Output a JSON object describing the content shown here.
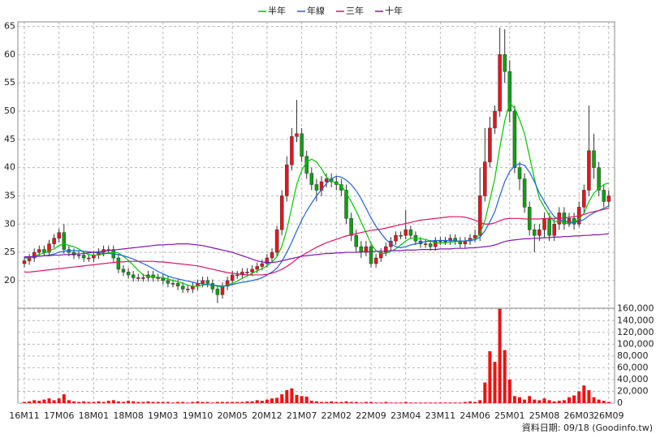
{
  "chart_data": [
    {
      "type": "candlestick",
      "categories": [
        "16M11",
        null,
        null,
        null,
        null,
        null,
        null,
        "17M06",
        null,
        null,
        null,
        null,
        null,
        null,
        "18M01",
        null,
        null,
        null,
        null,
        null,
        null,
        "18M08",
        null,
        null,
        null,
        null,
        null,
        null,
        "19M03",
        null,
        null,
        null,
        null,
        null,
        null,
        "19M10",
        null,
        null,
        null,
        null,
        null,
        null,
        "20M05",
        null,
        null,
        null,
        null,
        null,
        null,
        "20M12",
        null,
        null,
        null,
        null,
        null,
        null,
        "21M07",
        null,
        null,
        null,
        null,
        null,
        null,
        "22M02",
        null,
        null,
        null,
        null,
        null,
        null,
        "22M09",
        null,
        null,
        null,
        null,
        null,
        null,
        "23M04",
        null,
        null,
        null,
        null,
        null,
        null,
        "23M11",
        null,
        null,
        null,
        null,
        null,
        null,
        "24M06",
        null,
        null,
        null,
        null,
        null,
        null,
        "25M01",
        null,
        null,
        null,
        null,
        null,
        null,
        "25M08",
        null,
        null,
        null,
        null,
        null,
        null,
        "26M03",
        null,
        null,
        null,
        null,
        null,
        "26M09"
      ],
      "open": [
        23,
        23.5,
        24,
        25,
        25.5,
        25,
        26.5,
        27.5,
        28.5,
        25.5,
        25,
        24.5,
        24.5,
        24,
        24,
        24.5,
        25,
        25.5,
        25.5,
        24,
        22,
        21.5,
        21,
        20.5,
        20.5,
        20.5,
        21,
        20.5,
        20.5,
        20,
        19.5,
        19.5,
        19,
        18.5,
        18.5,
        19,
        19.5,
        20,
        19.5,
        18.5,
        17.5,
        19,
        20,
        21,
        21,
        21.5,
        21.5,
        22,
        22.5,
        23,
        24,
        25,
        29,
        35,
        40.5,
        45.5,
        46,
        42,
        39,
        37,
        36,
        37.5,
        38,
        37.5,
        37,
        36,
        31,
        28,
        26,
        25,
        26,
        23,
        24,
        25,
        26,
        27,
        28,
        28,
        29,
        28,
        27,
        26.5,
        26.5,
        26,
        27,
        27,
        27,
        27.5,
        27,
        26.5,
        27,
        27.5,
        28,
        35,
        41,
        47,
        50,
        60,
        57,
        50,
        40,
        38,
        33,
        29,
        28,
        29,
        31,
        28,
        30,
        32,
        30,
        31,
        30,
        33,
        36,
        43,
        40,
        36,
        34
      ],
      "high": [
        24.2,
        24.7,
        25.7,
        26.2,
        26.2,
        27.2,
        28.2,
        29.2,
        30,
        26.2,
        25.7,
        25.2,
        25.2,
        24.7,
        25.2,
        25.7,
        26.2,
        26.2,
        26.2,
        24.7,
        22.7,
        22.2,
        21.7,
        21.2,
        21.2,
        21.7,
        21.7,
        21.2,
        21.2,
        20.7,
        20.2,
        20.2,
        19.7,
        19.2,
        19.7,
        20.2,
        20.7,
        20.7,
        20.2,
        19.2,
        19.7,
        20.7,
        21.7,
        21.7,
        22.2,
        22.2,
        22.7,
        23.2,
        23.7,
        24.7,
        25.7,
        29.7,
        36,
        42,
        47,
        52,
        47,
        43,
        40,
        38,
        38.5,
        39,
        39,
        38.5,
        38,
        37,
        32,
        29,
        27,
        27,
        26.7,
        24.7,
        25.7,
        26.7,
        27.7,
        28.7,
        28.7,
        32.5,
        29.7,
        28.7,
        27.7,
        27.2,
        27.2,
        27.7,
        27.7,
        27.7,
        28.2,
        28.2,
        27.7,
        27.7,
        28.2,
        29,
        40,
        47,
        49,
        51,
        64.8,
        64.5,
        59,
        51,
        41,
        39,
        34,
        30,
        30,
        32,
        32,
        31,
        33,
        33,
        32,
        32,
        34,
        37,
        51,
        46,
        41,
        37,
        36
      ],
      "low": [
        22.3,
        22.8,
        23.3,
        24.3,
        24.3,
        24.3,
        25.8,
        26.8,
        24.8,
        24.3,
        23.8,
        23.8,
        23.3,
        23.3,
        23.3,
        23.8,
        24.3,
        24.8,
        23.3,
        21.3,
        20.8,
        20.3,
        19.8,
        19.8,
        19.8,
        19.8,
        19.8,
        19.8,
        19.3,
        18.8,
        18.8,
        18.3,
        17.8,
        17.8,
        17.8,
        18.3,
        18.8,
        18.8,
        17.8,
        16,
        16.8,
        18.3,
        19.3,
        20.3,
        20.3,
        20.8,
        20.8,
        21.3,
        21.8,
        22.3,
        23.3,
        24.3,
        28,
        34,
        39.5,
        44.5,
        41,
        38,
        36,
        34,
        35,
        36.5,
        36.5,
        36,
        35,
        30,
        27,
        25,
        24,
        24.3,
        22.3,
        22.3,
        23.3,
        24.3,
        25.3,
        26.3,
        27.3,
        27.3,
        27.3,
        26.3,
        25.8,
        25.8,
        25.3,
        25.3,
        26.3,
        26.3,
        26.3,
        26.3,
        25.8,
        25.8,
        26.3,
        26.8,
        27,
        34,
        40,
        46,
        49,
        55,
        48,
        39,
        36,
        32,
        28,
        25,
        27,
        27.5,
        27,
        27,
        29,
        29,
        29.5,
        29,
        29.5,
        32,
        35,
        38,
        35,
        33,
        33
      ],
      "close": [
        23.5,
        24,
        25,
        25.5,
        25,
        26.5,
        27.5,
        28.5,
        25.5,
        25,
        24.5,
        24.5,
        24,
        24,
        24.5,
        25,
        25.5,
        25.5,
        24,
        22,
        21.5,
        21,
        20.5,
        20.5,
        20.5,
        21,
        20.5,
        20.5,
        20,
        19.5,
        19.5,
        19,
        18.5,
        18.5,
        19,
        19.5,
        20,
        19.5,
        18.5,
        17.5,
        19,
        20,
        21,
        21,
        21.5,
        21.5,
        22,
        22.5,
        23,
        24,
        25,
        29,
        35,
        40.5,
        45.5,
        46,
        42,
        39,
        37,
        36,
        37.5,
        38,
        37.5,
        37,
        36,
        31,
        28,
        26,
        25,
        26,
        23,
        24,
        25,
        26,
        27,
        28,
        28,
        29,
        28,
        27,
        26.5,
        26.5,
        26,
        27,
        27,
        27,
        27.5,
        27,
        26.5,
        27,
        27.5,
        28,
        35,
        41,
        47,
        50,
        60,
        57,
        50,
        40,
        38,
        33,
        29,
        28,
        29,
        31,
        28,
        30,
        32,
        30,
        31,
        30,
        33,
        36,
        43,
        40,
        36,
        34,
        35
      ],
      "up_color": "#e8141e",
      "down_color": "#10a010",
      "series": [
        {
          "name": "半年",
          "color": "#00c800",
          "values": [
            24,
            24,
            24.3,
            24.6,
            24.9,
            25.2,
            25.6,
            26.2,
            26.5,
            26.2,
            26,
            25.6,
            25,
            24.6,
            24.5,
            24.5,
            24.7,
            24.9,
            25,
            24.9,
            24.3,
            23.6,
            22.7,
            21.8,
            21,
            20.7,
            20.6,
            20.6,
            20.5,
            20.3,
            20,
            19.8,
            19.5,
            19.2,
            19,
            19,
            19.2,
            19.3,
            19.2,
            19,
            18.9,
            19.2,
            19.5,
            19.9,
            20.4,
            20.8,
            21.3,
            21.7,
            22.1,
            22.6,
            23.3,
            24.2,
            26.1,
            29,
            33,
            37,
            39.5,
            41,
            41.5,
            41,
            39.8,
            38.3,
            37.6,
            37.2,
            36.9,
            35.5,
            34,
            32.3,
            30.4,
            28.5,
            26.5,
            25.3,
            24.8,
            24.8,
            25.2,
            25.6,
            26.3,
            27,
            27.5,
            27.5,
            27.4,
            27.3,
            27,
            26.7,
            26.6,
            26.7,
            26.8,
            26.9,
            27,
            27,
            27.2,
            27.3,
            28.3,
            30.6,
            34.3,
            38.1,
            43.5,
            48.3,
            51.5,
            50.5,
            48.5,
            46,
            42,
            38,
            34.5,
            33,
            31.5,
            30.4,
            30.5,
            30.2,
            30.1,
            30.3,
            30.9,
            31.9,
            34,
            35.5,
            36.3,
            37,
            37.3
          ]
        },
        {
          "name": "年線",
          "color": "#1e64dc",
          "values": [
            24,
            24.1,
            24.2,
            24.3,
            24.4,
            24.5,
            24.7,
            25,
            25.2,
            25.3,
            25.3,
            25.3,
            25.2,
            25.1,
            25,
            24.9,
            24.8,
            24.8,
            24.7,
            24.6,
            24.4,
            24.1,
            23.8,
            23.4,
            23,
            22.6,
            22.1,
            21.6,
            21.2,
            20.8,
            20.5,
            20.3,
            20.1,
            19.9,
            19.7,
            19.5,
            19.4,
            19.3,
            19.2,
            19.1,
            19,
            19.1,
            19.3,
            19.5,
            19.7,
            19.8,
            20,
            20.2,
            20.5,
            21,
            21.5,
            22.2,
            23.4,
            25,
            26.8,
            28.8,
            30.7,
            32.3,
            33.7,
            35,
            36.1,
            37.2,
            38,
            38.5,
            38.3,
            37.8,
            37,
            35.9,
            34.5,
            32.8,
            31.1,
            29.6,
            28.4,
            27.3,
            26.5,
            26,
            25.8,
            26,
            26.3,
            26.5,
            26.7,
            26.9,
            27,
            27.1,
            27.1,
            27.1,
            27.1,
            27,
            27,
            27,
            27.1,
            27.2,
            27.7,
            28.8,
            30.4,
            32.2,
            35,
            37.5,
            39.3,
            40.3,
            40.7,
            40.4,
            39.2,
            37.5,
            35.5,
            34,
            32.5,
            31.3,
            30.8,
            30.5,
            30.4,
            30.3,
            30.5,
            30.8,
            31.5,
            32,
            32.4,
            32.8,
            33.2
          ]
        },
        {
          "name": "三年",
          "color": "#dc1464",
          "values": [
            21.5,
            21.5,
            21.6,
            21.7,
            21.8,
            21.9,
            22,
            22.1,
            22.2,
            22.3,
            22.4,
            22.5,
            22.6,
            22.7,
            22.8,
            22.9,
            23,
            23.1,
            23.2,
            23.3,
            23.3,
            23.4,
            23.4,
            23.4,
            23.4,
            23.4,
            23.4,
            23.3,
            23.3,
            23.2,
            23.1,
            23,
            22.9,
            22.8,
            22.7,
            22.6,
            22.4,
            22.2,
            22,
            21.8,
            21.6,
            21.4,
            21.3,
            21.2,
            21.1,
            21,
            21,
            21,
            21,
            21.1,
            21.3,
            21.6,
            22,
            22.5,
            23.1,
            23.8,
            24.4,
            24.9,
            25.4,
            25.9,
            26.3,
            26.7,
            27,
            27.3,
            27.6,
            27.9,
            28.1,
            28.3,
            28.5,
            28.7,
            28.9,
            29,
            29.1,
            29.3,
            29.5,
            29.7,
            29.9,
            30.1,
            30.3,
            30.5,
            30.7,
            30.8,
            30.9,
            31,
            31.1,
            31.2,
            31.3,
            31.3,
            31.3,
            31.2,
            31,
            30.7,
            30.3,
            30,
            30,
            30.2,
            30.6,
            30.9,
            31,
            31,
            31,
            30.9,
            30.9,
            30.9,
            30.9,
            31,
            31,
            31,
            31,
            31.1,
            31.2,
            31.3,
            31.5,
            31.7,
            32,
            32.2,
            32.4,
            32.6,
            32.8
          ]
        },
        {
          "name": "十年",
          "color": "#8214b4",
          "values": [
            24.2,
            24.2,
            24.3,
            24.3,
            24.4,
            24.4,
            24.5,
            24.5,
            24.6,
            24.6,
            24.7,
            24.7,
            24.8,
            24.9,
            25,
            25.1,
            25.2,
            25.3,
            25.4,
            25.5,
            25.6,
            25.7,
            25.8,
            25.9,
            26,
            26.1,
            26.2,
            26.3,
            26.3,
            26.4,
            26.4,
            26.5,
            26.5,
            26.5,
            26.4,
            26.3,
            26.2,
            26,
            25.8,
            25.6,
            25.4,
            25.2,
            25,
            24.7,
            24.4,
            24.1,
            23.8,
            23.5,
            23.3,
            23.2,
            23.2,
            23.3,
            23.5,
            23.7,
            23.9,
            24.1,
            24.3,
            24.4,
            24.5,
            24.6,
            24.7,
            24.8,
            24.8,
            24.9,
            24.9,
            25,
            25,
            25,
            25.1,
            25.1,
            25.1,
            25.2,
            25.2,
            25.2,
            25.3,
            25.3,
            25.3,
            25.4,
            25.4,
            25.4,
            25.5,
            25.5,
            25.5,
            25.5,
            25.6,
            25.6,
            25.6,
            25.7,
            25.7,
            25.7,
            25.8,
            25.8,
            25.9,
            26,
            26.1,
            26.3,
            26.6,
            26.9,
            27.1,
            27.2,
            27.3,
            27.4,
            27.4,
            27.5,
            27.5,
            27.6,
            27.6,
            27.7,
            27.7,
            27.8,
            27.8,
            27.9,
            27.9,
            28,
            28,
            28.1,
            28.1,
            28.2,
            28.3
          ]
        }
      ],
      "ylim": [
        15.1,
        65.8
      ],
      "yticks": [
        20,
        25,
        30,
        35,
        40,
        45,
        50,
        55,
        60,
        65
      ],
      "grid": true
    },
    {
      "type": "bar",
      "color": "#ee1111",
      "values": [
        2000,
        3000,
        5000,
        4000,
        6000,
        8000,
        5000,
        8000,
        15000,
        5000,
        3000,
        2000,
        3000,
        2000,
        2000,
        3000,
        2000,
        4000,
        5000,
        3000,
        2000,
        4000,
        3000,
        2000,
        2000,
        3000,
        2000,
        2000,
        2000,
        2000,
        1000,
        2000,
        2000,
        1000,
        2000,
        3000,
        2000,
        2000,
        1000,
        2000,
        2000,
        2000,
        2000,
        2000,
        2000,
        3000,
        3000,
        5000,
        4000,
        6000,
        8000,
        9000,
        15000,
        22000,
        25000,
        14000,
        12000,
        11000,
        4000,
        3000,
        2000,
        2000,
        3000,
        2000,
        2000,
        3000,
        2000,
        2000,
        1000,
        2000,
        2000,
        1000,
        1000,
        2000,
        1000,
        1000,
        1000,
        2000,
        1000,
        1000,
        1000,
        1000,
        1000,
        1000,
        1000,
        1000,
        1000,
        1000,
        1000,
        2000,
        3000,
        2000,
        5000,
        35000,
        88000,
        70000,
        160000,
        90000,
        40000,
        12000,
        10000,
        6000,
        12000,
        6000,
        5000,
        8000,
        5000,
        3000,
        4000,
        5000,
        10000,
        13000,
        20000,
        30000,
        22000,
        10000,
        6000,
        4000,
        2000
      ],
      "ylim": [
        0,
        161000
      ],
      "yticks": [
        0,
        {
          "value": 20000,
          "label": "20,000"
        },
        {
          "value": 40000,
          "label": "40,000"
        },
        {
          "value": 60000,
          "label": "60,000"
        },
        {
          "value": 80000,
          "label": "80,000"
        },
        {
          "value": 100000,
          "label": "100,000"
        },
        {
          "value": 120000,
          "label": "120,000"
        },
        {
          "value": 140000,
          "label": "140,000"
        },
        {
          "value": 160000,
          "label": "160,000"
        }
      ],
      "grid": true
    }
  ],
  "footer": "資料日期: 09/18 (Goodinfo.tw)"
}
